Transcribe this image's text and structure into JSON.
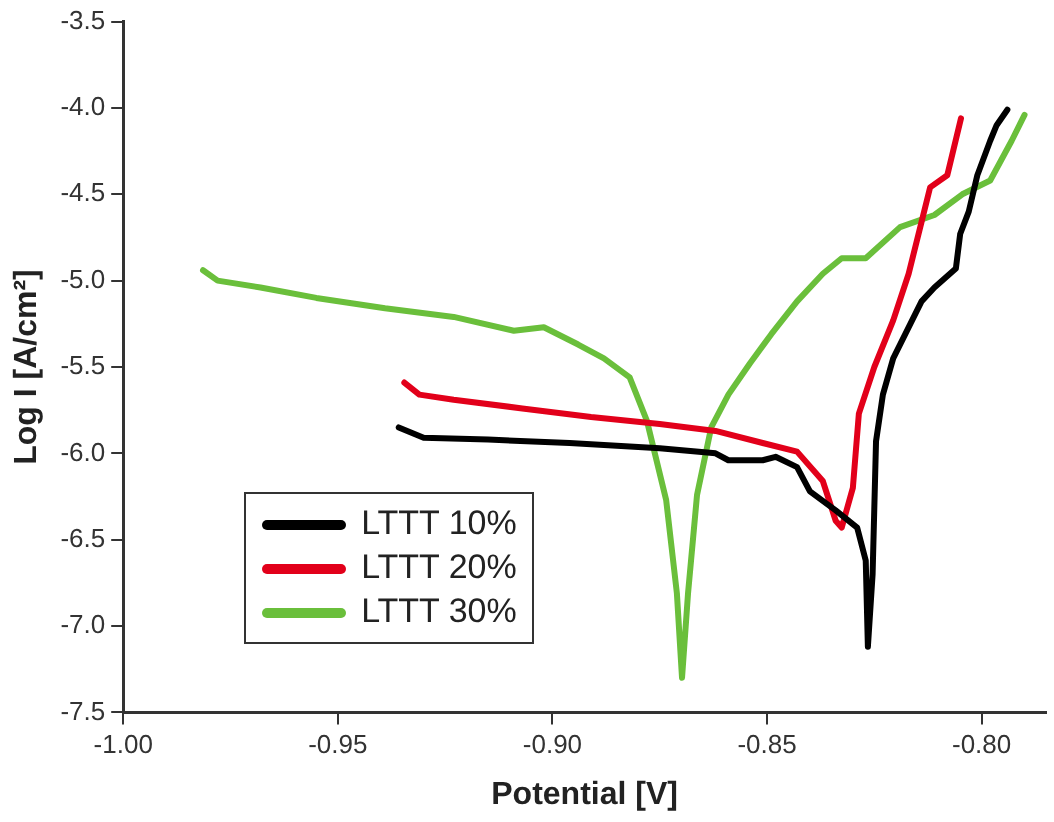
{
  "chart_data": {
    "type": "line",
    "xlabel": "Potential [V]",
    "ylabel": "Log I [A/cm²]",
    "xlim": [
      -1.0,
      -0.785
    ],
    "xticks": [
      {
        "value": -1.0,
        "label": "-1.00"
      },
      {
        "value": -0.95,
        "label": "-0.95"
      },
      {
        "value": -0.9,
        "label": "-0.90"
      },
      {
        "value": -0.85,
        "label": "-0.85"
      },
      {
        "value": -0.8,
        "label": "-0.80"
      }
    ],
    "ylim": [
      -7.5,
      -3.5
    ],
    "yticks": [
      {
        "value": -7.5,
        "label": "-7.5"
      },
      {
        "value": -7.0,
        "label": "-7.0"
      },
      {
        "value": -6.5,
        "label": "-6.5"
      },
      {
        "value": -6.0,
        "label": "-6.0"
      },
      {
        "value": -5.5,
        "label": "-5.5"
      },
      {
        "value": -5.0,
        "label": "-5.0"
      },
      {
        "value": -4.5,
        "label": "-4.5"
      },
      {
        "value": -4.0,
        "label": "-4.0"
      },
      {
        "value": -3.5,
        "label": "-3.5"
      }
    ],
    "grid": false,
    "legend": "bottom left",
    "marker": "none",
    "line_style": "solid",
    "series": [
      {
        "name": "LTTT 10%",
        "color": "#000000",
        "x": [
          -0.9358,
          -0.93,
          -0.915,
          -0.896,
          -0.875,
          -0.862,
          -0.859,
          -0.851,
          -0.848,
          -0.843,
          -0.84,
          -0.834,
          -0.829,
          -0.827,
          -0.8265,
          -0.8254,
          -0.8246,
          -0.823,
          -0.8206,
          -0.814,
          -0.811,
          -0.806,
          -0.805,
          -0.803,
          -0.801,
          -0.798,
          -0.7965,
          -0.794
        ],
        "values": [
          -5.85,
          -5.91,
          -5.92,
          -5.94,
          -5.97,
          -6.0,
          -6.04,
          -6.04,
          -6.02,
          -6.08,
          -6.22,
          -6.33,
          -6.43,
          -6.62,
          -7.12,
          -6.7,
          -5.93,
          -5.66,
          -5.45,
          -5.12,
          -5.04,
          -4.93,
          -4.73,
          -4.6,
          -4.39,
          -4.19,
          -4.1,
          -4.01
        ]
      },
      {
        "name": "LTTT 20%",
        "color": "#e2001a",
        "x": [
          -0.9345,
          -0.931,
          -0.923,
          -0.907,
          -0.891,
          -0.875,
          -0.862,
          -0.851,
          -0.843,
          -0.837,
          -0.834,
          -0.8326,
          -0.83,
          -0.8286,
          -0.825,
          -0.8206,
          -0.817,
          -0.814,
          -0.812,
          -0.808,
          -0.8048
        ],
        "values": [
          -5.59,
          -5.66,
          -5.69,
          -5.74,
          -5.79,
          -5.83,
          -5.87,
          -5.94,
          -5.99,
          -6.16,
          -6.39,
          -6.43,
          -6.2,
          -5.77,
          -5.5,
          -5.23,
          -4.96,
          -4.66,
          -4.46,
          -4.39,
          -4.06
        ]
      },
      {
        "name": "LTTT 30%",
        "color": "#6abf3b",
        "x": [
          -0.9814,
          -0.978,
          -0.968,
          -0.955,
          -0.939,
          -0.923,
          -0.909,
          -0.902,
          -0.894,
          -0.888,
          -0.882,
          -0.878,
          -0.8735,
          -0.871,
          -0.8698,
          -0.8684,
          -0.8663,
          -0.863,
          -0.859,
          -0.854,
          -0.849,
          -0.843,
          -0.837,
          -0.8326,
          -0.827,
          -0.819,
          -0.811,
          -0.8045,
          -0.798,
          -0.793,
          -0.79
        ],
        "values": [
          -4.94,
          -5.0,
          -5.04,
          -5.1,
          -5.16,
          -5.21,
          -5.29,
          -5.27,
          -5.37,
          -5.45,
          -5.56,
          -5.81,
          -6.27,
          -6.81,
          -7.3,
          -6.81,
          -6.24,
          -5.85,
          -5.66,
          -5.48,
          -5.31,
          -5.12,
          -4.96,
          -4.87,
          -4.87,
          -4.69,
          -4.62,
          -4.5,
          -4.42,
          -4.19,
          -4.04
        ]
      }
    ]
  }
}
